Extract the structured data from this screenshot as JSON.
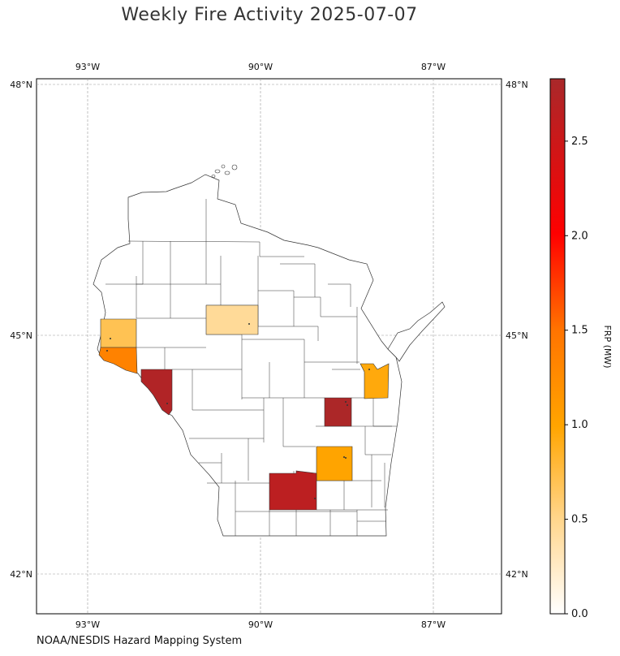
{
  "title": "Weekly Fire Activity 2025-07-07",
  "source": "NOAA/NESDIS Hazard Mapping System",
  "map": {
    "lon_ticks": [
      {
        "value": -93,
        "label": "93°W"
      },
      {
        "value": -90,
        "label": "90°W"
      },
      {
        "value": -87,
        "label": "87°W"
      }
    ],
    "lat_ticks": [
      {
        "value": 48,
        "label": "48°N"
      },
      {
        "value": 45,
        "label": "45°N"
      },
      {
        "value": 42,
        "label": "42°N"
      }
    ],
    "extent": {
      "lon_min": -93.9,
      "lon_max": -85.8,
      "lat_min": 41.5,
      "lat_max": 48.07
    },
    "region": "Wisconsin",
    "grid": true
  },
  "colorbar": {
    "label": "FRP (MW)",
    "min": 0.0,
    "max": 2.83,
    "ticks": [
      {
        "value": 0.0,
        "label": "0.0"
      },
      {
        "value": 0.5,
        "label": "0.5"
      },
      {
        "value": 1.0,
        "label": "1.0"
      },
      {
        "value": 1.5,
        "label": "1.5"
      },
      {
        "value": 2.0,
        "label": "2.0"
      },
      {
        "value": 2.5,
        "label": "2.5"
      }
    ],
    "colors": [
      "#ffffff",
      "#ffd58a",
      "#ffa500",
      "#ff7400",
      "#ff0000",
      "#a9282a"
    ]
  },
  "counties": [
    {
      "frp": 0.7
    },
    {
      "frp": 1.35
    },
    {
      "frp": 2.75
    },
    {
      "frp": 0.45
    },
    {
      "frp": 0.95
    },
    {
      "frp": 2.8
    },
    {
      "frp": 1.0
    },
    {
      "frp": 2.65
    }
  ]
}
